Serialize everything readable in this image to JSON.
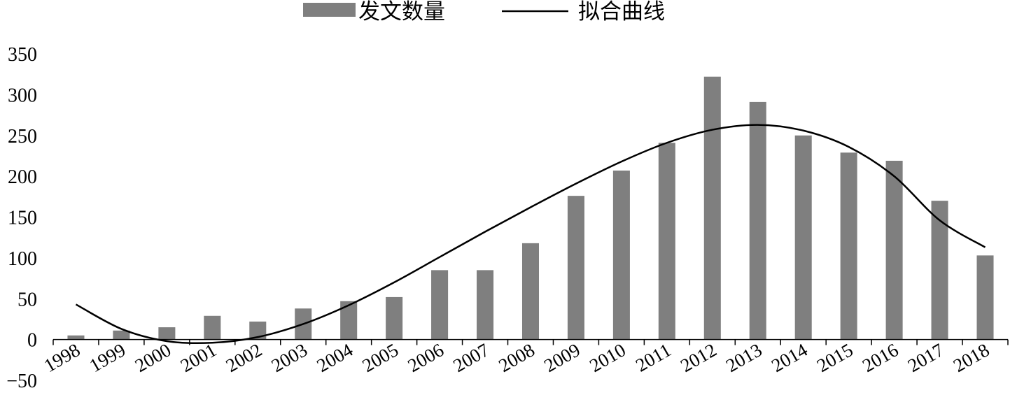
{
  "chart_data": {
    "type": "bar",
    "categories": [
      "1998",
      "1999",
      "2000",
      "2001",
      "2002",
      "2003",
      "2004",
      "2005",
      "2006",
      "2007",
      "2008",
      "2009",
      "2010",
      "2011",
      "2012",
      "2013",
      "2014",
      "2015",
      "2016",
      "2017",
      "2018"
    ],
    "series": [
      {
        "name": "发文数量",
        "type": "bar",
        "color": "#7f7f7f",
        "values": [
          5,
          11,
          15,
          29,
          22,
          38,
          47,
          52,
          85,
          85,
          118,
          176,
          207,
          241,
          322,
          291,
          250,
          229,
          219,
          170,
          103
        ]
      },
      {
        "name": "拟合曲线",
        "type": "line",
        "color": "#000000",
        "values": [
          43,
          13,
          -2,
          -4,
          3,
          19,
          42,
          70,
          101,
          132,
          162,
          191,
          218,
          241,
          257,
          263,
          256,
          236,
          200,
          146,
          113
        ]
      }
    ],
    "ylim": [
      -50,
      350
    ],
    "yticks": [
      "350",
      "300",
      "250",
      "200",
      "150",
      "100",
      "50",
      "0",
      "−50"
    ],
    "legend": "top-center",
    "grid": false
  }
}
